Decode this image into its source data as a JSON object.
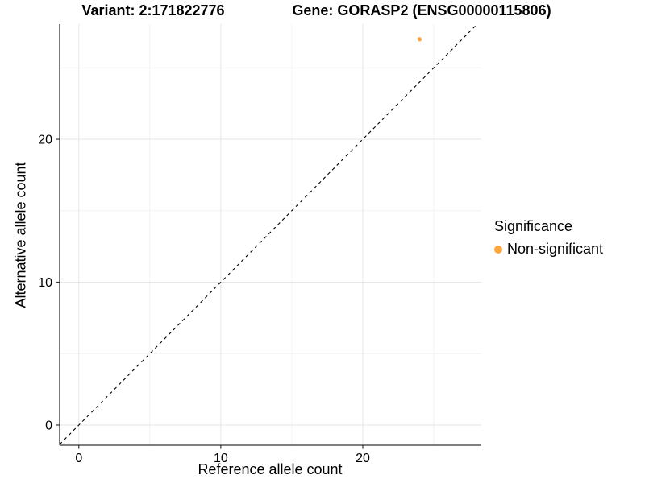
{
  "titles": {
    "variant": "Variant: 2:171822776",
    "gene": "Gene: GORASP2 (ENSG00000115806)"
  },
  "chart_data": {
    "type": "scatter",
    "xlabel": "Reference allele count",
    "ylabel": "Alternative allele count",
    "x_ticks": [
      0,
      10,
      20
    ],
    "y_ticks": [
      0,
      10,
      20
    ],
    "x_minor_ticks": [
      5,
      15,
      25
    ],
    "y_minor_ticks": [
      5,
      15,
      25
    ],
    "xlim": [
      -1.35,
      28.35
    ],
    "ylim": [
      -1.41,
      28.06
    ],
    "grid": true,
    "points": [
      {
        "x": 24,
        "y": 27,
        "series": "Non-significant"
      }
    ],
    "reference_line": {
      "type": "identity",
      "slope": 1,
      "intercept": 0,
      "style": "dashed",
      "color": "#000000"
    },
    "legend": {
      "title": "Significance",
      "position": "right",
      "entries": [
        {
          "label": "Non-significant",
          "color": "#FFA640"
        }
      ]
    },
    "style_colors": {
      "major_grid": "#E6E6E6",
      "minor_grid": "#F2F2F2",
      "axis_line": "#333333"
    }
  }
}
